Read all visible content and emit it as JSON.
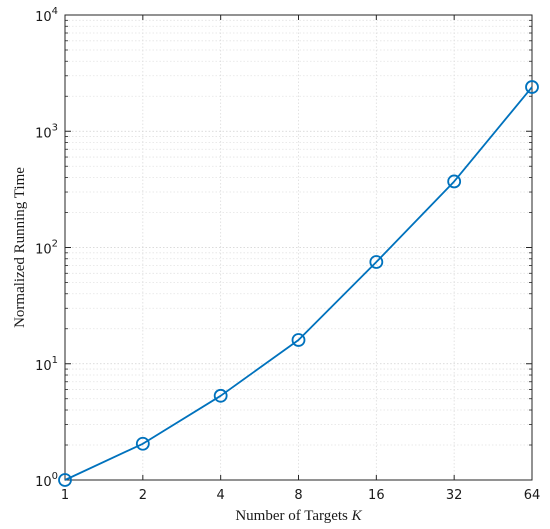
{
  "chart_data": {
    "type": "line",
    "title": "",
    "xlabel": "Number of Targets",
    "xlabel_symbol": "K",
    "ylabel": "Normalized Running Time",
    "x_scale": "log2",
    "y_scale": "log10",
    "x_ticks": [
      1,
      2,
      4,
      8,
      16,
      32,
      64
    ],
    "x_tick_labels": [
      "1",
      "2",
      "4",
      "8",
      "16",
      "32",
      "64"
    ],
    "y_ticks": [
      1,
      10,
      100,
      1000,
      10000
    ],
    "y_tick_labels": [
      {
        "base": "10",
        "exp": "0"
      },
      {
        "base": "10",
        "exp": "1"
      },
      {
        "base": "10",
        "exp": "2"
      },
      {
        "base": "10",
        "exp": "3"
      },
      {
        "base": "10",
        "exp": "4"
      }
    ],
    "xlim": [
      1,
      64
    ],
    "ylim": [
      1,
      10000
    ],
    "grid": true,
    "minor_grid": true,
    "series": [
      {
        "x": [
          1,
          2,
          4,
          8,
          16,
          32,
          64
        ],
        "values": [
          1.0,
          2.05,
          5.3,
          16,
          75,
          370,
          2400
        ],
        "color": "#0072BD",
        "marker": "circle-open"
      }
    ]
  }
}
